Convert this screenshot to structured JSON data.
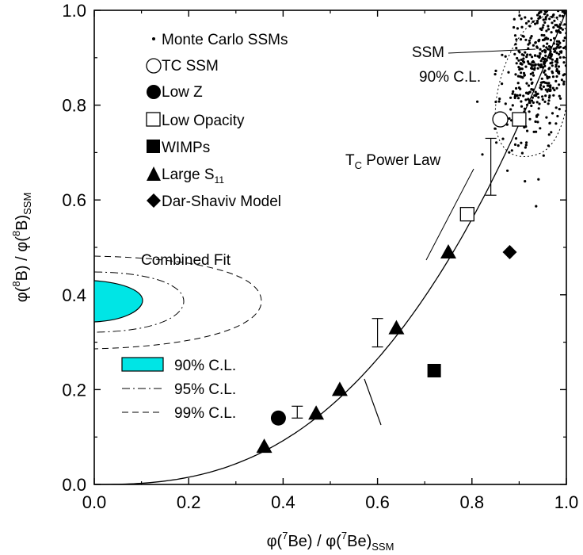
{
  "chart_data": {
    "type": "scatter",
    "xlim": [
      0.0,
      1.0
    ],
    "ylim": [
      0.0,
      1.0
    ],
    "x_ticks": [
      "0.0",
      "0.2",
      "0.4",
      "0.6",
      "0.8",
      "1.0"
    ],
    "y_ticks": [
      "0.0",
      "0.2",
      "0.4",
      "0.6",
      "0.8",
      "1.0"
    ],
    "xlabel": {
      "a": "φ(",
      "sup": "7",
      "b": "Be) / φ(",
      "sup2": "7",
      "c": "Be)",
      "sub": "SSM"
    },
    "ylabel": {
      "a": "φ(",
      "sup": "8",
      "b": "B) / φ(",
      "sup2": "8",
      "c": "B)",
      "sub": "SSM"
    },
    "grid": false,
    "colors": {
      "fill_90": "#00e5e5",
      "ink": "#000000"
    },
    "legend": {
      "placement": "top-left",
      "items": [
        {
          "name": "Monte Carlo SSMs",
          "marker": "dot"
        },
        {
          "name": "TC SSM",
          "marker": "open-circle"
        },
        {
          "name": "Low Z",
          "marker": "filled-circle"
        },
        {
          "name": "Low Opacity",
          "marker": "open-square"
        },
        {
          "name": "WIMPs",
          "marker": "filled-square"
        },
        {
          "name": "Large S11",
          "label_main": "Large S",
          "label_sub": "11",
          "marker": "filled-triangle"
        },
        {
          "name": "Dar-Shaviv Model",
          "marker": "filled-diamond"
        }
      ]
    },
    "fit_legend": {
      "title": "Combined Fit",
      "items": [
        {
          "name": "90% C.L.",
          "style": "filled"
        },
        {
          "name": "95% C.L.",
          "style": "dash-dot"
        },
        {
          "name": "99% C.L.",
          "style": "dashed"
        }
      ]
    },
    "annotations": {
      "ssm_contour": [
        "SSM",
        "90% C.L."
      ],
      "power_law": {
        "main": "T",
        "sub": "C",
        "rest": " Power Law"
      }
    },
    "series": [
      {
        "name": "TC SSM",
        "marker": "open-circle",
        "points": [
          [
            0.86,
            0.77
          ]
        ]
      },
      {
        "name": "Low Z",
        "marker": "filled-circle",
        "points": [
          [
            0.39,
            0.14
          ]
        ]
      },
      {
        "name": "Low Opacity",
        "marker": "open-square",
        "points": [
          [
            0.79,
            0.57
          ],
          [
            0.9,
            0.77
          ]
        ]
      },
      {
        "name": "WIMPs",
        "marker": "filled-square",
        "points": [
          [
            0.72,
            0.24
          ]
        ]
      },
      {
        "name": "Large S11",
        "marker": "filled-triangle",
        "points": [
          [
            0.36,
            0.08
          ],
          [
            0.47,
            0.15
          ],
          [
            0.52,
            0.2
          ],
          [
            0.64,
            0.33
          ],
          [
            0.75,
            0.49
          ]
        ]
      },
      {
        "name": "Dar-Shaviv Model",
        "marker": "filled-diamond",
        "points": [
          [
            0.88,
            0.49
          ]
        ]
      }
    ],
    "error_bars": [
      {
        "x": 0.43,
        "low": 0.14,
        "high": 0.165
      },
      {
        "x": 0.6,
        "low": 0.29,
        "high": 0.35
      },
      {
        "x": 0.84,
        "low": 0.61,
        "high": 0.73
      }
    ],
    "power_law_curve": {
      "exponent": 2.6,
      "x_range": [
        0.0,
        1.0
      ]
    },
    "monte_carlo": {
      "center": [
        0.95,
        0.9
      ],
      "spread": [
        0.04,
        0.09
      ],
      "count": 520
    }
  }
}
